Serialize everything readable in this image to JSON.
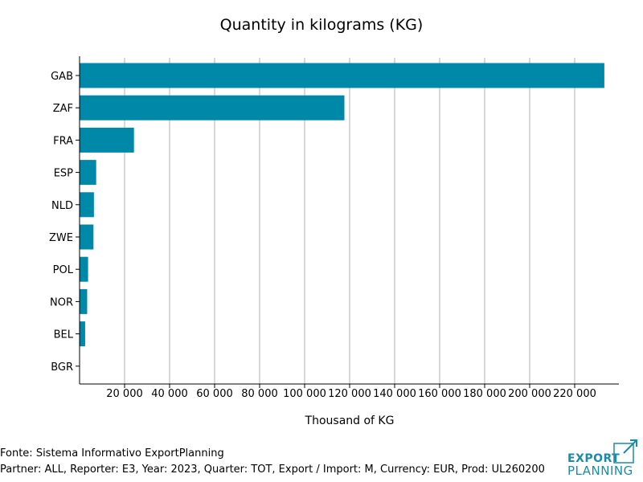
{
  "chart_data": {
    "type": "bar",
    "orientation": "horizontal",
    "title": "Quantity in kilograms (KG)",
    "xlabel": "Thousand of KG",
    "ylabel": "",
    "categories": [
      "GAB",
      "ZAF",
      "FRA",
      "ESP",
      "NLD",
      "ZWE",
      "POL",
      "NOR",
      "BEL",
      "BGR"
    ],
    "values": [
      233000,
      117500,
      24000,
      7200,
      6200,
      6000,
      3600,
      3200,
      2300,
      0
    ],
    "xlim": [
      0,
      235000
    ],
    "xticks": [
      20000,
      40000,
      60000,
      80000,
      100000,
      120000,
      140000,
      160000,
      180000,
      200000,
      220000
    ],
    "xtick_labels": [
      "20 000",
      "40 000",
      "60 000",
      "80 000",
      "100 000",
      "120 000",
      "140 000",
      "160 000",
      "180 000",
      "200 000",
      "220 000"
    ],
    "grid": "vertical",
    "bar_color": "#0088a8"
  },
  "footer": {
    "source": "Fonte: Sistema Informativo ExportPlanning",
    "meta": "Partner: ALL, Reporter: E3, Year: 2023, Quarter: TOT, Export / Import: M, Currency: EUR, Prod: UL260200"
  },
  "logo": {
    "line1": "EXPORT",
    "line2": "PLANNING",
    "color": "#1a8ca8"
  }
}
